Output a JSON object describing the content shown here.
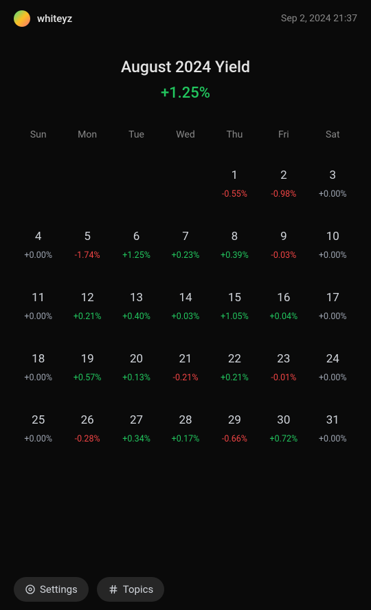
{
  "header": {
    "username": "whiteyz",
    "timestamp": "Sep 2, 2024 21:37"
  },
  "title": "August 2024 Yield",
  "totalYield": {
    "value": "+1.25%",
    "class": "positive"
  },
  "weekdays": [
    "Sun",
    "Mon",
    "Tue",
    "Wed",
    "Thu",
    "Fri",
    "Sat"
  ],
  "days": [
    {
      "empty": true
    },
    {
      "empty": true
    },
    {
      "empty": true
    },
    {
      "empty": true
    },
    {
      "day": "1",
      "yield": "-0.55%",
      "class": "negative"
    },
    {
      "day": "2",
      "yield": "-0.98%",
      "class": "negative"
    },
    {
      "day": "3",
      "yield": "+0.00%",
      "class": "neutral"
    },
    {
      "day": "4",
      "yield": "+0.00%",
      "class": "neutral"
    },
    {
      "day": "5",
      "yield": "-1.74%",
      "class": "negative"
    },
    {
      "day": "6",
      "yield": "+1.25%",
      "class": "positive"
    },
    {
      "day": "7",
      "yield": "+0.23%",
      "class": "positive"
    },
    {
      "day": "8",
      "yield": "+0.39%",
      "class": "positive"
    },
    {
      "day": "9",
      "yield": "-0.03%",
      "class": "negative"
    },
    {
      "day": "10",
      "yield": "+0.00%",
      "class": "neutral"
    },
    {
      "day": "11",
      "yield": "+0.00%",
      "class": "neutral"
    },
    {
      "day": "12",
      "yield": "+0.21%",
      "class": "positive"
    },
    {
      "day": "13",
      "yield": "+0.40%",
      "class": "positive"
    },
    {
      "day": "14",
      "yield": "+0.03%",
      "class": "positive"
    },
    {
      "day": "15",
      "yield": "+1.05%",
      "class": "positive"
    },
    {
      "day": "16",
      "yield": "+0.04%",
      "class": "positive"
    },
    {
      "day": "17",
      "yield": "+0.00%",
      "class": "neutral"
    },
    {
      "day": "18",
      "yield": "+0.00%",
      "class": "neutral"
    },
    {
      "day": "19",
      "yield": "+0.57%",
      "class": "positive"
    },
    {
      "day": "20",
      "yield": "+0.13%",
      "class": "positive"
    },
    {
      "day": "21",
      "yield": "-0.21%",
      "class": "negative"
    },
    {
      "day": "22",
      "yield": "+0.21%",
      "class": "positive"
    },
    {
      "day": "23",
      "yield": "-0.01%",
      "class": "negative"
    },
    {
      "day": "24",
      "yield": "+0.00%",
      "class": "neutral"
    },
    {
      "day": "25",
      "yield": "+0.00%",
      "class": "neutral"
    },
    {
      "day": "26",
      "yield": "-0.28%",
      "class": "negative"
    },
    {
      "day": "27",
      "yield": "+0.34%",
      "class": "positive"
    },
    {
      "day": "28",
      "yield": "+0.17%",
      "class": "positive"
    },
    {
      "day": "29",
      "yield": "-0.66%",
      "class": "negative"
    },
    {
      "day": "30",
      "yield": "+0.72%",
      "class": "positive"
    },
    {
      "day": "31",
      "yield": "+0.00%",
      "class": "neutral"
    }
  ],
  "bottomBar": {
    "settings": "Settings",
    "topics": "Topics"
  },
  "colors": {
    "background": "#0a0a0a",
    "text": "#e5e5e5",
    "muted": "#888",
    "positive": "#22c55e",
    "negative": "#ef4444",
    "neutral": "#9ca3af",
    "pillBg": "#262626"
  }
}
